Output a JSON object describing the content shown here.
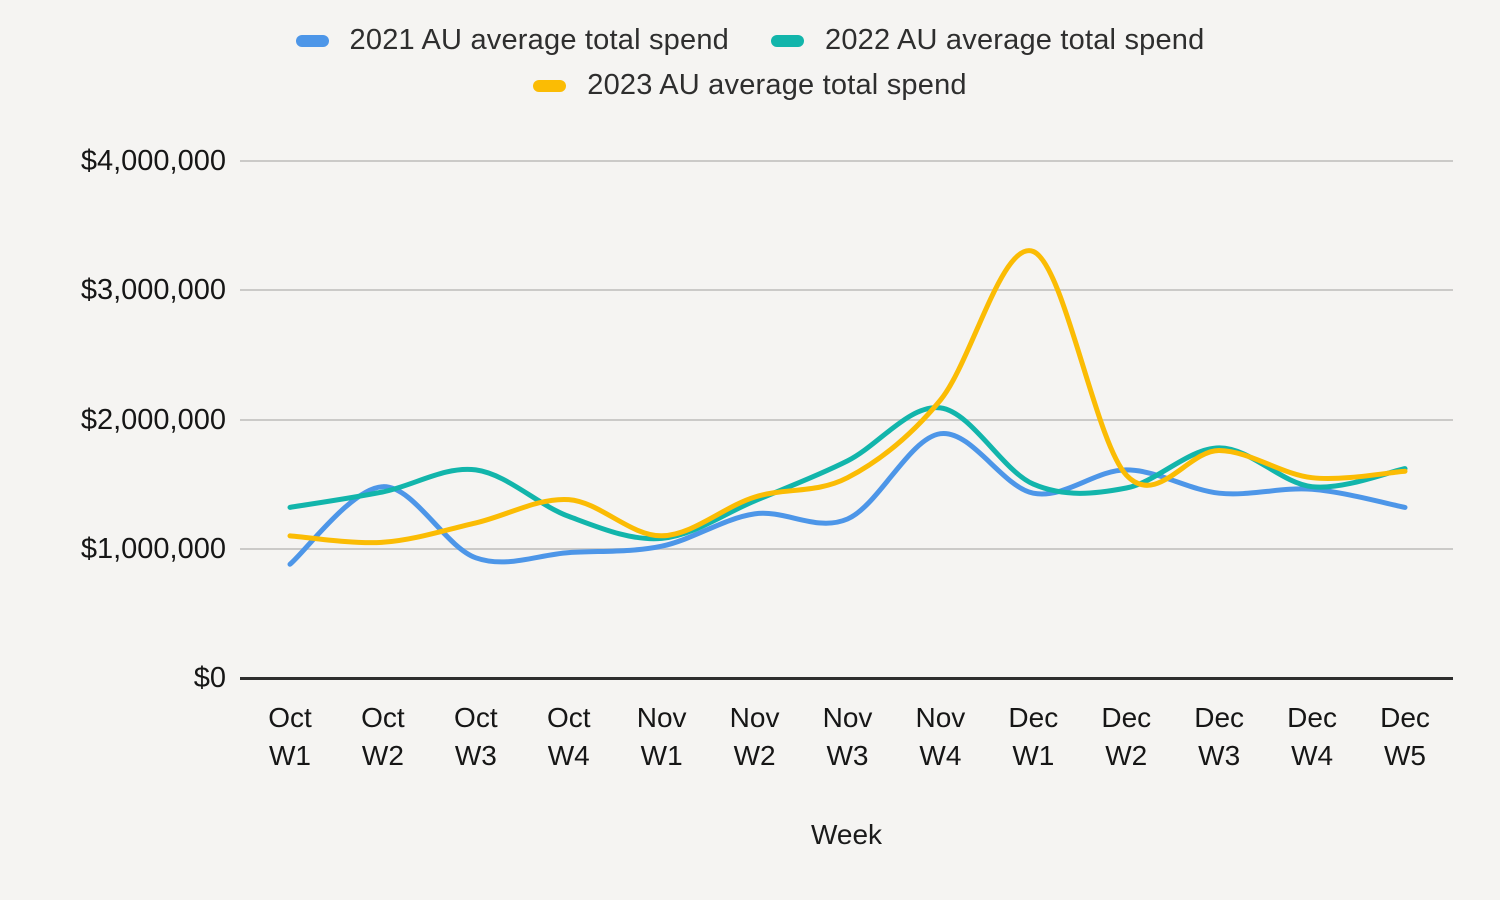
{
  "chart_data": {
    "type": "line",
    "title": "",
    "xlabel": "Week",
    "ylabel": "",
    "grid": true,
    "legend_position": "top",
    "line_smoothing": true,
    "categories": [
      "Oct W1",
      "Oct W2",
      "Oct W3",
      "Oct W4",
      "Nov W1",
      "Nov W2",
      "Nov W3",
      "Nov W4",
      "Dec W1",
      "Dec W2",
      "Dec W3",
      "Dec W4",
      "Dec W5"
    ],
    "series": [
      {
        "name": "2021 AU average total spend",
        "color": "#4D96E8",
        "values": [
          880000,
          1480000,
          930000,
          970000,
          1020000,
          1270000,
          1230000,
          1890000,
          1430000,
          1610000,
          1430000,
          1460000,
          1320000
        ]
      },
      {
        "name": "2022 AU average total spend",
        "color": "#12B5AB",
        "values": [
          1320000,
          1440000,
          1610000,
          1250000,
          1080000,
          1370000,
          1680000,
          2090000,
          1500000,
          1470000,
          1780000,
          1480000,
          1620000
        ]
      },
      {
        "name": "2023 AU average total spend",
        "color": "#FBBC04",
        "values": [
          1100000,
          1050000,
          1200000,
          1380000,
          1100000,
          1400000,
          1550000,
          2150000,
          3300000,
          1570000,
          1760000,
          1550000,
          1600000
        ]
      }
    ],
    "ylim": [
      0,
      4000000
    ],
    "yticks": [
      {
        "label": "$0",
        "value": 0
      },
      {
        "label": "$1,000,000",
        "value": 1000000
      },
      {
        "label": "$2,000,000",
        "value": 2000000
      },
      {
        "label": "$3,000,000",
        "value": 3000000
      },
      {
        "label": "$4,000,000",
        "value": 4000000
      }
    ]
  },
  "colors": {
    "background": "#F5F4F2",
    "gridline": "#CBCAC8",
    "zero_axis": "#2E2E2E",
    "tick_text": "#161616",
    "legend_text": "#2E2E2E"
  }
}
